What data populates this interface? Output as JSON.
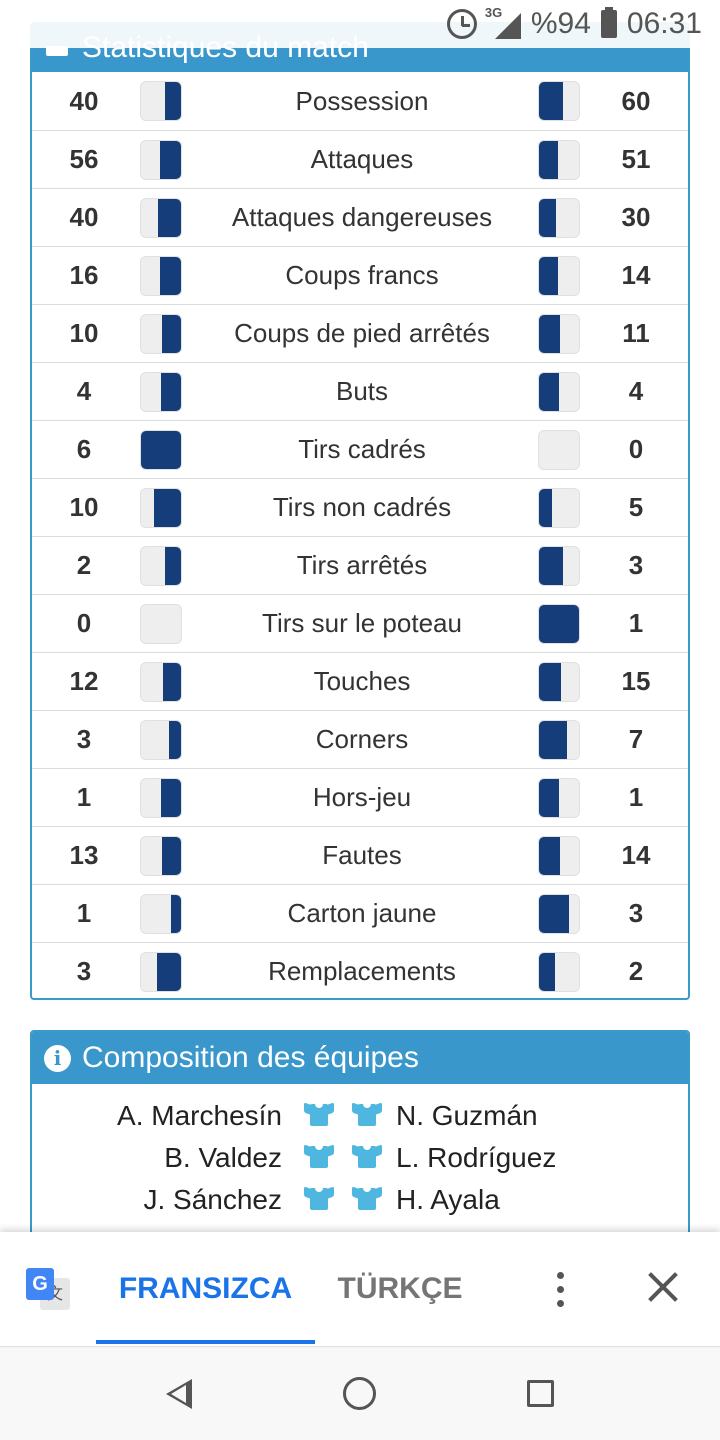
{
  "status_bar": {
    "battery": "%94",
    "time": "06:31",
    "network": "3G"
  },
  "stats_card": {
    "title": "Statistiques du match",
    "rows": [
      {
        "label": "Possession",
        "home": "40",
        "away": "60",
        "home_share": 0.4,
        "away_share": 0.6
      },
      {
        "label": "Attaques",
        "home": "56",
        "away": "51",
        "home_share": 0.52,
        "away_share": 0.48
      },
      {
        "label": "Attaques dangereuses",
        "home": "40",
        "away": "30",
        "home_share": 0.57,
        "away_share": 0.43
      },
      {
        "label": "Coups francs",
        "home": "16",
        "away": "14",
        "home_share": 0.53,
        "away_share": 0.47
      },
      {
        "label": "Coups de pied arrêtés",
        "home": "10",
        "away": "11",
        "home_share": 0.48,
        "away_share": 0.52
      },
      {
        "label": "Buts",
        "home": "4",
        "away": "4",
        "home_share": 0.5,
        "away_share": 0.5
      },
      {
        "label": "Tirs cadrés",
        "home": "6",
        "away": "0",
        "home_share": 1.0,
        "away_share": 0.0
      },
      {
        "label": "Tirs non cadrés",
        "home": "10",
        "away": "5",
        "home_share": 0.67,
        "away_share": 0.33
      },
      {
        "label": "Tirs arrêtés",
        "home": "2",
        "away": "3",
        "home_share": 0.4,
        "away_share": 0.6
      },
      {
        "label": "Tirs sur le poteau",
        "home": "0",
        "away": "1",
        "home_share": 0.0,
        "away_share": 1.0
      },
      {
        "label": "Touches",
        "home": "12",
        "away": "15",
        "home_share": 0.44,
        "away_share": 0.56
      },
      {
        "label": "Corners",
        "home": "3",
        "away": "7",
        "home_share": 0.3,
        "away_share": 0.7
      },
      {
        "label": "Hors-jeu",
        "home": "1",
        "away": "1",
        "home_share": 0.5,
        "away_share": 0.5
      },
      {
        "label": "Fautes",
        "home": "13",
        "away": "14",
        "home_share": 0.48,
        "away_share": 0.52
      },
      {
        "label": "Carton jaune",
        "home": "1",
        "away": "3",
        "home_share": 0.25,
        "away_share": 0.75
      },
      {
        "label": "Remplacements",
        "home": "3",
        "away": "2",
        "home_share": 0.6,
        "away_share": 0.4
      }
    ],
    "bar_color": "#143d7a"
  },
  "lineup_card": {
    "title": "Composition des équipes",
    "players": [
      {
        "home": "A. Marchesín",
        "away": "N. Guzmán"
      },
      {
        "home": "B. Valdez",
        "away": "L. Rodríguez"
      },
      {
        "home": "J. Sánchez",
        "away": "H. Ayala"
      }
    ],
    "shirt_icon": "shirt-icon",
    "accent_color": "#3a97cc"
  },
  "translate_bar": {
    "source_language": "FRANSIZCA",
    "target_language": "TÜRKÇE",
    "accent_color": "#1a73e8"
  },
  "nav_bar": {
    "icons": [
      "back-icon",
      "home-icon",
      "recents-icon"
    ]
  }
}
